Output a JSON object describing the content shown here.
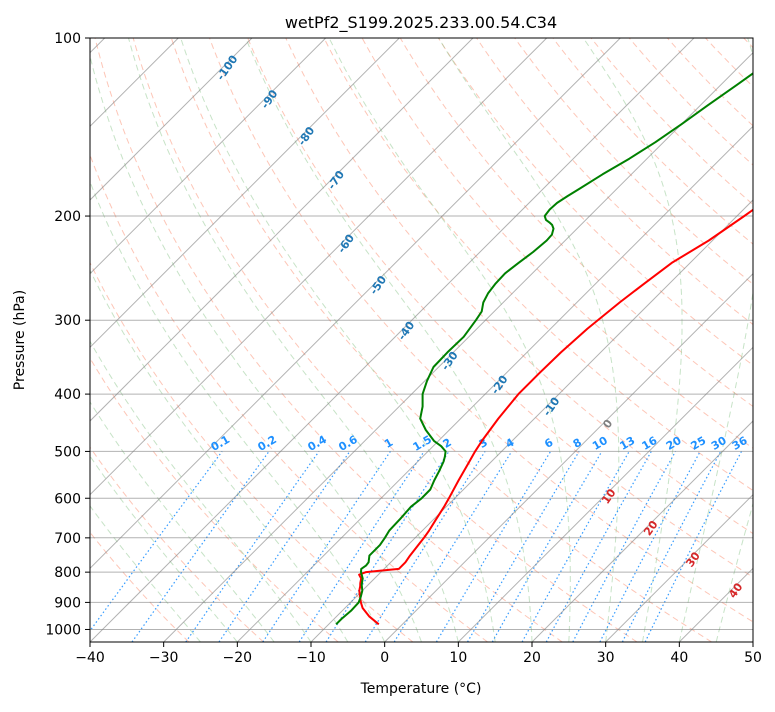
{
  "chart_data": {
    "type": "line",
    "title": "wetPf2_S199.2025.233.00.54.C34",
    "xlabel": "Temperature (°C)",
    "ylabel": "Pressure (hPa)",
    "xlim": [
      -40,
      50
    ],
    "ylim": [
      1050,
      100
    ],
    "y_scale": "log",
    "x_ticks": [
      -40,
      -30,
      -20,
      -10,
      0,
      10,
      20,
      30,
      40,
      50
    ],
    "x_tick_labels": [
      "−40",
      "−30",
      "−20",
      "−10",
      "0",
      "10",
      "20",
      "30",
      "40",
      "50"
    ],
    "y_ticks": [
      100,
      200,
      300,
      400,
      500,
      600,
      700,
      800,
      900,
      1000
    ],
    "y_tick_labels": [
      "100",
      "200",
      "300",
      "400",
      "500",
      "600",
      "700",
      "800",
      "900",
      "1000"
    ],
    "grid": true,
    "series": [
      {
        "color": "#ff0000",
        "p": [
          980,
          950,
          920,
          900,
          880,
          860,
          845,
          835,
          820,
          808,
          800,
          790,
          770,
          750,
          720,
          700,
          680,
          650,
          620,
          600,
          560,
          520,
          500,
          480,
          440,
          400,
          370,
          340,
          310,
          280,
          260,
          240,
          220,
          200,
          180,
          160,
          140,
          120,
          110,
          100
        ],
        "t": [
          -3.2,
          -5.6,
          -7.6,
          -8.6,
          -9.5,
          -10.4,
          -10.9,
          -11.3,
          -11.8,
          -12.6,
          -12.0,
          -8.0,
          -8.0,
          -8.3,
          -8.6,
          -8.8,
          -9.1,
          -9.7,
          -10.3,
          -10.8,
          -11.9,
          -13.0,
          -13.6,
          -14.1,
          -14.9,
          -15.5,
          -15.5,
          -15.4,
          -15.0,
          -14.2,
          -13.4,
          -12.5,
          -10.5,
          -9.0,
          -7.5,
          -6.0,
          -5.0,
          -5.0,
          -4.0,
          -3.0
        ]
      },
      {
        "color": "#008000",
        "p": [
          980,
          960,
          930,
          900,
          880,
          860,
          840,
          820,
          800,
          790,
          780,
          770,
          750,
          720,
          700,
          680,
          650,
          620,
          600,
          580,
          560,
          540,
          520,
          510,
          500,
          490,
          480,
          460,
          440,
          420,
          400,
          380,
          360,
          340,
          320,
          300,
          290,
          280,
          270,
          260,
          250,
          240,
          230,
          220,
          215,
          210,
          207,
          205,
          203,
          200,
          195,
          190,
          185,
          180,
          170,
          160,
          150,
          140,
          130,
          120,
          110,
          100
        ],
        "t": [
          -9.0,
          -9.0,
          -8.8,
          -8.9,
          -9.4,
          -10.0,
          -10.9,
          -11.6,
          -12.7,
          -13.1,
          -12.9,
          -13.0,
          -13.8,
          -13.8,
          -14.1,
          -14.5,
          -14.6,
          -14.8,
          -14.5,
          -14.5,
          -15.2,
          -15.8,
          -16.5,
          -17.0,
          -17.6,
          -18.9,
          -20.6,
          -23.2,
          -25.5,
          -26.8,
          -28.5,
          -29.7,
          -30.7,
          -30.8,
          -30.7,
          -31.3,
          -31.7,
          -32.7,
          -33.3,
          -33.6,
          -33.7,
          -33.3,
          -32.8,
          -32.5,
          -32.6,
          -33.2,
          -33.9,
          -34.6,
          -35.4,
          -36.1,
          -36.3,
          -36.2,
          -35.7,
          -35.1,
          -33.9,
          -32.4,
          -31.1,
          -30.0,
          -29.0,
          -27.8,
          -26.6,
          -25.5
        ]
      }
    ],
    "dry_adiabat_labels": [
      "-100",
      "-90",
      "-80",
      "-70",
      "-60",
      "-50",
      "-40",
      "-30",
      "-20",
      "-10",
      "0",
      "10",
      "20",
      "30",
      "40"
    ],
    "mixing_ratio_labels": [
      "0.1",
      "0.2",
      "0.4",
      "0.6",
      "1",
      "1.5",
      "2",
      "3",
      "4",
      "6",
      "8",
      "10",
      "13",
      "16",
      "20",
      "25",
      "30",
      "36"
    ],
    "colors": {
      "temperature": "#ff0000",
      "dewpoint": "#008000",
      "dry_adiabat": "#fa8060",
      "moist_adiabat": "#90c890",
      "mixing_ratio": "#1e90ff",
      "isotherm": "#808080",
      "dry_label": "#1f77b4",
      "moist_label": "#d62728"
    }
  }
}
